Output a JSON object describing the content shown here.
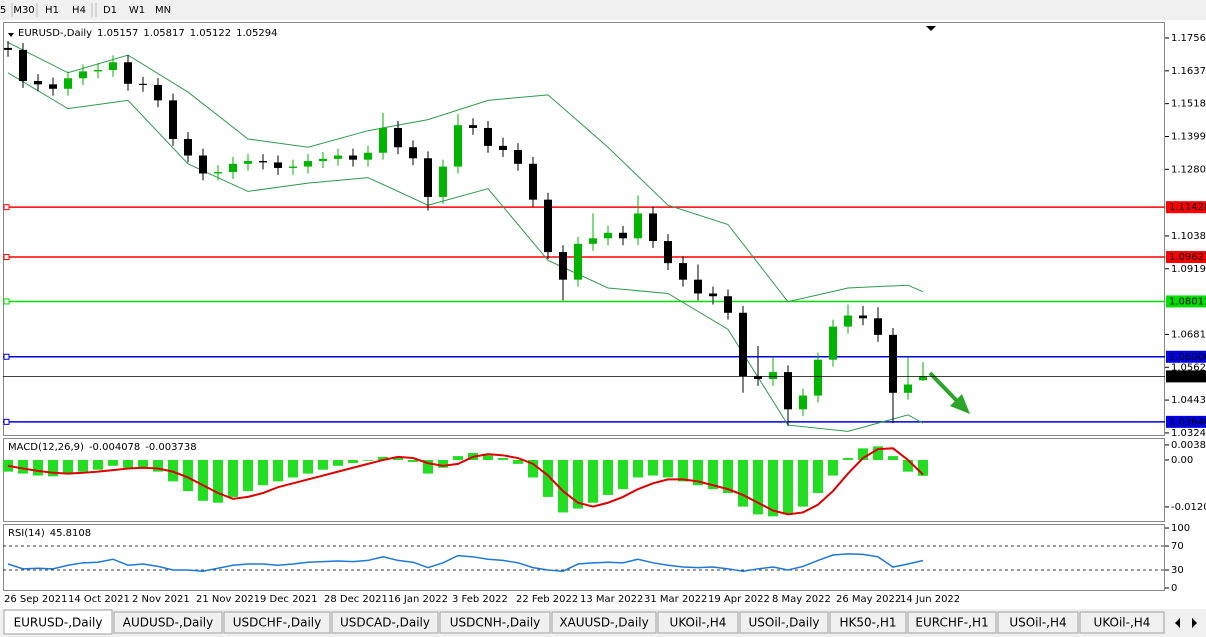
{
  "toolbar": {
    "buttons": [
      "5",
      "M30",
      "H1",
      "H4",
      "D1",
      "W1",
      "MN"
    ]
  },
  "chart_data": [
    {
      "type": "candlestick",
      "title": "EURUSD-,Daily",
      "open": [
        1.172,
        1.1713,
        1.16,
        1.1588,
        1.1572,
        1.161,
        1.1635,
        1.164,
        1.1668,
        1.159,
        1.1586,
        1.153,
        1.139,
        1.133,
        1.1265,
        1.127,
        1.13,
        1.131,
        1.1305,
        1.1285,
        1.129,
        1.131,
        1.1318,
        1.133,
        1.1315,
        1.134,
        1.143,
        1.136,
        1.132,
        1.118,
        1.129,
        1.144,
        1.143,
        1.1365,
        1.135,
        1.13,
        1.117,
        1.098,
        1.088,
        1.101,
        1.103,
        1.105,
        1.103,
        1.112,
        1.102,
        1.094,
        1.088,
        1.083,
        1.082,
        1.076,
        1.053,
        1.052,
        1.0545,
        1.041,
        1.046,
        1.059,
        1.071,
        1.075,
        1.074,
        1.068,
        1.047,
        1.05157
      ],
      "high": [
        1.1745,
        1.1738,
        1.1625,
        1.1613,
        1.1635,
        1.166,
        1.1665,
        1.1693,
        1.1693,
        1.1615,
        1.1611,
        1.1555,
        1.1415,
        1.1355,
        1.1295,
        1.1325,
        1.1335,
        1.1335,
        1.133,
        1.1315,
        1.1335,
        1.1343,
        1.1355,
        1.1355,
        1.1365,
        1.1485,
        1.1455,
        1.1385,
        1.1345,
        1.1315,
        1.148,
        1.1465,
        1.1455,
        1.1395,
        1.1375,
        1.1325,
        1.1195,
        1.1005,
        1.1035,
        1.112,
        1.1075,
        1.1075,
        1.1185,
        1.1145,
        1.1045,
        1.0965,
        1.0935,
        1.0855,
        1.0845,
        1.0785,
        1.064,
        1.06,
        1.057,
        1.0485,
        1.0615,
        1.0735,
        1.079,
        1.0785,
        1.078,
        1.0705,
        1.06,
        1.05817
      ],
      "low": [
        1.1688,
        1.1575,
        1.1563,
        1.1547,
        1.1547,
        1.1585,
        1.161,
        1.1615,
        1.1565,
        1.1561,
        1.1505,
        1.1365,
        1.1305,
        1.124,
        1.124,
        1.1245,
        1.1275,
        1.128,
        1.126,
        1.126,
        1.1265,
        1.1285,
        1.1293,
        1.129,
        1.129,
        1.1315,
        1.1335,
        1.1295,
        1.113,
        1.1155,
        1.1265,
        1.1405,
        1.134,
        1.1325,
        1.1275,
        1.1145,
        1.0955,
        1.0805,
        1.0855,
        1.0985,
        1.1005,
        1.1005,
        1.1005,
        1.0995,
        1.0915,
        1.0855,
        1.0805,
        1.079,
        1.0735,
        1.047,
        1.0495,
        1.0495,
        1.035,
        1.0385,
        1.0435,
        1.0565,
        1.0685,
        1.0715,
        1.0655,
        1.036,
        1.0445,
        1.05122
      ],
      "close": [
        1.1713,
        1.16,
        1.1588,
        1.1572,
        1.161,
        1.1635,
        1.164,
        1.1668,
        1.159,
        1.1586,
        1.153,
        1.139,
        1.133,
        1.1265,
        1.127,
        1.13,
        1.131,
        1.1305,
        1.1285,
        1.129,
        1.131,
        1.1318,
        1.133,
        1.1315,
        1.134,
        1.143,
        1.136,
        1.132,
        1.118,
        1.129,
        1.144,
        1.143,
        1.1365,
        1.135,
        1.13,
        1.117,
        1.098,
        1.088,
        1.101,
        1.103,
        1.105,
        1.103,
        1.112,
        1.102,
        1.094,
        1.088,
        1.083,
        1.082,
        1.076,
        1.053,
        1.052,
        1.0545,
        1.041,
        1.046,
        1.059,
        1.071,
        1.075,
        1.074,
        1.068,
        1.047,
        1.05,
        1.05294
      ],
      "bands": [
        {
          "x": [
            0,
            4,
            8,
            12,
            16,
            20,
            24,
            28,
            32,
            36,
            40,
            44,
            48,
            52,
            56,
            60,
            61
          ],
          "values": [
            1.174,
            1.163,
            1.1694,
            1.156,
            1.139,
            1.136,
            1.142,
            1.146,
            1.153,
            1.155,
            1.136,
            1.115,
            1.108,
            1.08,
            1.085,
            1.086,
            1.0836
          ]
        },
        {
          "x": [
            0,
            4,
            8,
            12,
            16,
            20,
            24,
            28,
            32,
            36,
            40,
            44,
            48,
            52,
            56,
            60,
            61
          ],
          "values": [
            1.163,
            1.15,
            1.153,
            1.13,
            1.12,
            1.123,
            1.125,
            1.115,
            1.121,
            1.095,
            1.085,
            1.083,
            1.07,
            1.0353,
            1.033,
            1.039,
            1.036
          ]
        }
      ],
      "band_color": "#2e9a4c",
      "up_color": "#00b400",
      "down_color": "#000000",
      "current_color": "#000000",
      "levels": [
        {
          "value": 1.11428,
          "color": "#ff0000"
        },
        {
          "value": 1.09621,
          "color": "#ff0000"
        },
        {
          "value": 1.08011,
          "color": "#00e000"
        },
        {
          "value": 1.06006,
          "color": "#0000e0"
        },
        {
          "value": 1.03646,
          "color": "#0000e0"
        }
      ],
      "ylim": [
        1.0317,
        1.1814
      ],
      "yticks": [
        {
          "value": 1.1756,
          "label": "1.17560"
        },
        {
          "value": 1.1637,
          "label": "1.16370"
        },
        {
          "value": 1.1518,
          "label": "1.15180"
        },
        {
          "value": 1.1399,
          "label": "1.13990"
        },
        {
          "value": 1.128,
          "label": "1.12800"
        },
        1.10385,
        1.09195,
        1.06815,
        1.05625,
        1.04436,
        1.03245
      ],
      "x_labels": [
        "26 Sep 2021",
        "14 Oct 2021",
        "2 Nov 2021",
        "21 Nov 2021",
        "9 Dec 2021",
        "28 Dec 2021",
        "16 Jan 2022",
        "3 Feb 2022",
        "22 Feb 2022",
        "13 Mar 2022",
        "31 Mar 2022",
        "19 Apr 2022",
        "8 May 2022",
        "26 May 2022",
        "14 Jun 2022"
      ]
    },
    {
      "type": "macd",
      "title": "MACD(12,26,9)",
      "series": [
        {
          "style": "histogram",
          "color": "#22dd22",
          "values": [
            -0.003,
            -0.0035,
            -0.004,
            -0.0042,
            -0.0035,
            -0.003,
            -0.0025,
            -0.0015,
            -0.002,
            -0.0022,
            -0.003,
            -0.0055,
            -0.008,
            -0.0105,
            -0.011,
            -0.0095,
            -0.008,
            -0.0065,
            -0.0055,
            -0.0045,
            -0.0035,
            -0.0025,
            -0.0015,
            -0.0008,
            -0.0002,
            0.0008,
            0.0006,
            -0.0005,
            -0.0035,
            -0.002,
            0.001,
            0.0018,
            0.0012,
            0.0005,
            -0.001,
            -0.0045,
            -0.0095,
            -0.0135,
            -0.0125,
            -0.011,
            -0.009,
            -0.0075,
            -0.0045,
            -0.004,
            -0.0045,
            -0.0055,
            -0.0065,
            -0.0075,
            -0.0085,
            -0.012,
            -0.014,
            -0.0145,
            -0.014,
            -0.012,
            -0.0085,
            -0.004,
            0.0005,
            0.003,
            0.0035,
            0.001,
            -0.003,
            -0.004078
          ]
        },
        {
          "style": "line",
          "color": "#dd0000",
          "values": [
            -0.0015,
            -0.0022,
            -0.0028,
            -0.0033,
            -0.0035,
            -0.0033,
            -0.003,
            -0.0026,
            -0.0022,
            -0.002,
            -0.0022,
            -0.003,
            -0.0045,
            -0.0065,
            -0.0085,
            -0.01,
            -0.0095,
            -0.0085,
            -0.007,
            -0.006,
            -0.005,
            -0.004,
            -0.003,
            -0.002,
            -0.001,
            0.0,
            0.0008,
            0.0005,
            -0.0008,
            -0.0015,
            -0.001,
            0.0008,
            0.0015,
            0.0012,
            0.0005,
            -0.001,
            -0.004,
            -0.008,
            -0.011,
            -0.012,
            -0.011,
            -0.0095,
            -0.0075,
            -0.006,
            -0.005,
            -0.005,
            -0.0055,
            -0.0065,
            -0.0075,
            -0.009,
            -0.011,
            -0.013,
            -0.014,
            -0.0135,
            -0.0115,
            -0.008,
            -0.0035,
            0.0005,
            0.0028,
            0.003,
            0.0,
            -0.003738
          ]
        }
      ],
      "ylim": [
        -0.0157,
        0.0054
      ],
      "yticks": [
        0.003865,
        {
          "value": 0,
          "label": "0.00"
        },
        -0.01208
      ]
    },
    {
      "type": "line",
      "title": "RSI(14)",
      "color": "#1e78d4",
      "values": [
        40,
        32,
        33,
        32,
        38,
        42,
        43,
        48,
        38,
        40,
        36,
        30,
        30,
        28,
        33,
        38,
        40,
        40,
        38,
        40,
        43,
        44,
        45,
        44,
        46,
        52,
        46,
        43,
        34,
        42,
        54,
        52,
        48,
        46,
        42,
        34,
        30,
        28,
        40,
        42,
        43,
        42,
        48,
        42,
        38,
        35,
        34,
        35,
        32,
        28,
        32,
        35,
        30,
        36,
        46,
        55,
        57,
        56,
        52,
        35,
        40,
        45.8108
      ],
      "ylim": [
        -3.3,
        106.7
      ],
      "yticks": [
        100,
        70,
        30,
        0
      ],
      "levels": [
        70,
        30
      ]
    }
  ],
  "tabs": [
    "EURUSD-,Daily",
    "AUDUSD-,Daily",
    "USDCHF-,Daily",
    "USDCAD-,Daily",
    "USDCNH-,Daily",
    "XAUUSD-,Daily",
    "UKOil-,H4",
    "USOil-,Daily",
    "HK50-,H1",
    "EURCHF-,H1",
    "USOil-,H4",
    "UKOil-,H4"
  ]
}
